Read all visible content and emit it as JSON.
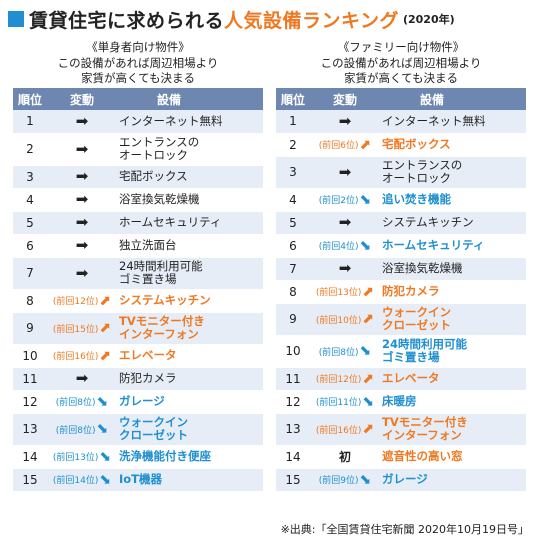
{
  "title": {
    "part1": "賃貸住宅に求められる",
    "part2": "人気設備ランキング",
    "year": "(2020年)"
  },
  "colors": {
    "accent_blue": "#1e8fd0",
    "accent_orange": "#f07820",
    "header_bg": "#6e87b0",
    "row_alt": "#e6edf6"
  },
  "headers": {
    "rank": "順位",
    "change": "変動",
    "facility": "設備"
  },
  "left": {
    "heading": [
      "《単身者向け物件》",
      "この設備があれば周辺相場より",
      "家賃が高くても決まる"
    ],
    "rows": [
      {
        "rank": "1",
        "change": "same",
        "prev": "",
        "color": "gray",
        "lines": [
          "インターネット無料"
        ]
      },
      {
        "rank": "2",
        "change": "same",
        "prev": "",
        "color": "gray",
        "lines": [
          "エントランスの",
          "オートロック"
        ]
      },
      {
        "rank": "3",
        "change": "same",
        "prev": "",
        "color": "gray",
        "lines": [
          "宅配ボックス"
        ]
      },
      {
        "rank": "4",
        "change": "same",
        "prev": "",
        "color": "gray",
        "lines": [
          "浴室換気乾燥機"
        ]
      },
      {
        "rank": "5",
        "change": "same",
        "prev": "",
        "color": "gray",
        "lines": [
          "ホームセキュリティ"
        ]
      },
      {
        "rank": "6",
        "change": "same",
        "prev": "",
        "color": "gray",
        "lines": [
          "独立洗面台"
        ]
      },
      {
        "rank": "7",
        "change": "same",
        "prev": "",
        "color": "gray",
        "lines": [
          "24時間利用可能",
          "ゴミ置き場"
        ]
      },
      {
        "rank": "8",
        "change": "up",
        "prev": "(前回12位)",
        "color": "orange",
        "lines": [
          "システムキッチン"
        ]
      },
      {
        "rank": "9",
        "change": "up",
        "prev": "(前回15位)",
        "color": "orange",
        "lines": [
          "TVモニター付き",
          "インターフォン"
        ]
      },
      {
        "rank": "10",
        "change": "up",
        "prev": "(前回16位)",
        "color": "orange",
        "lines": [
          "エレベータ"
        ]
      },
      {
        "rank": "11",
        "change": "same",
        "prev": "",
        "color": "gray",
        "lines": [
          "防犯カメラ"
        ]
      },
      {
        "rank": "12",
        "change": "down",
        "prev": "(前回8位)",
        "color": "blue",
        "lines": [
          "ガレージ"
        ]
      },
      {
        "rank": "13",
        "change": "down",
        "prev": "(前回8位)",
        "color": "blue",
        "lines": [
          "ウォークイン",
          "クローゼット"
        ]
      },
      {
        "rank": "14",
        "change": "down",
        "prev": "(前回13位)",
        "color": "blue",
        "lines": [
          "洗浄機能付き便座"
        ]
      },
      {
        "rank": "15",
        "change": "down",
        "prev": "(前回14位)",
        "color": "blue",
        "lines": [
          "IoT機器"
        ]
      }
    ]
  },
  "right": {
    "heading": [
      "《ファミリー向け物件》",
      "この設備があれば周辺相場より",
      "家賃が高くても決まる"
    ],
    "rows": [
      {
        "rank": "1",
        "change": "same",
        "prev": "",
        "color": "gray",
        "lines": [
          "インターネット無料"
        ]
      },
      {
        "rank": "2",
        "change": "up",
        "prev": "(前回6位)",
        "color": "orange",
        "lines": [
          "宅配ボックス"
        ]
      },
      {
        "rank": "3",
        "change": "same",
        "prev": "",
        "color": "gray",
        "lines": [
          "エントランスの",
          "オートロック"
        ]
      },
      {
        "rank": "4",
        "change": "down",
        "prev": "(前回2位)",
        "color": "blue",
        "lines": [
          "追い焚き機能"
        ]
      },
      {
        "rank": "5",
        "change": "same",
        "prev": "",
        "color": "gray",
        "lines": [
          "システムキッチン"
        ]
      },
      {
        "rank": "6",
        "change": "down",
        "prev": "(前回4位)",
        "color": "blue",
        "lines": [
          "ホームセキュリティ"
        ]
      },
      {
        "rank": "7",
        "change": "same",
        "prev": "",
        "color": "gray",
        "lines": [
          "浴室換気乾燥機"
        ]
      },
      {
        "rank": "8",
        "change": "up",
        "prev": "(前回13位)",
        "color": "orange",
        "lines": [
          "防犯カメラ"
        ]
      },
      {
        "rank": "9",
        "change": "up",
        "prev": "(前回10位)",
        "color": "orange",
        "lines": [
          "ウォークイン",
          "クローゼット"
        ]
      },
      {
        "rank": "10",
        "change": "down",
        "prev": "(前回8位)",
        "color": "blue",
        "lines": [
          "24時間利用可能",
          "ゴミ置き場"
        ]
      },
      {
        "rank": "11",
        "change": "up",
        "prev": "(前回12位)",
        "color": "orange",
        "lines": [
          "エレベータ"
        ]
      },
      {
        "rank": "12",
        "change": "down",
        "prev": "(前回11位)",
        "color": "blue",
        "lines": [
          "床暖房"
        ]
      },
      {
        "rank": "13",
        "change": "up",
        "prev": "(前回16位)",
        "color": "orange",
        "lines": [
          "TVモニター付き",
          "インターフォン"
        ]
      },
      {
        "rank": "14",
        "change": "new",
        "prev": "初",
        "color": "orange",
        "lines": [
          "遮音性の高い窓"
        ]
      },
      {
        "rank": "15",
        "change": "down",
        "prev": "(前回9位)",
        "color": "blue",
        "lines": [
          "ガレージ"
        ]
      }
    ]
  },
  "source": "※出典:「全国賃貸住宅新聞 2020年10月19日号」"
}
